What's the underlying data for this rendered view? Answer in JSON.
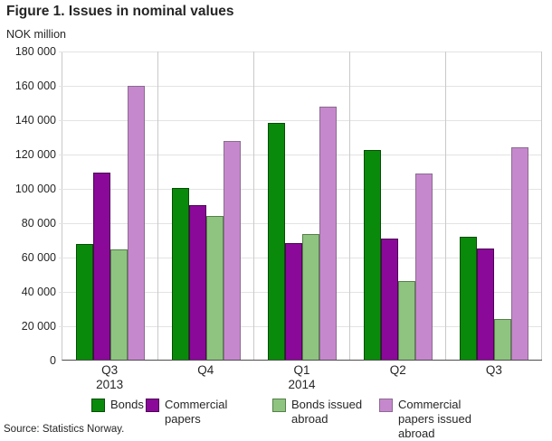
{
  "title": "Figure 1. Issues in nominal values",
  "source": "Source: Statistics Norway.",
  "chart_data": {
    "type": "bar",
    "title": "Figure 1. Issues in nominal values",
    "xlabel": "",
    "ylabel": "NOK million",
    "ylim": [
      0,
      180000
    ],
    "yticks": [
      0,
      20000,
      40000,
      60000,
      80000,
      100000,
      120000,
      140000,
      160000,
      180000
    ],
    "ytick_labels": [
      "0",
      "20 000",
      "40 000",
      "60 000",
      "80 000",
      "100 000",
      "120 000",
      "140 000",
      "160 000",
      "180 000"
    ],
    "categories": [
      "Q3",
      "Q4",
      "Q1",
      "Q2",
      "Q3"
    ],
    "category_years": [
      "2013",
      "",
      "2014",
      "",
      ""
    ],
    "grid": true,
    "legend_position": "bottom",
    "series": [
      {
        "name": "Bonds",
        "color": "#0a8a0a",
        "border_color": "#054d05",
        "values": [
          67500,
          100500,
          138500,
          122500,
          72000
        ]
      },
      {
        "name": "Commercial papers",
        "color": "#8a0999",
        "border_color": "#4c0553",
        "values": [
          109500,
          90500,
          68000,
          70500,
          65000
        ]
      },
      {
        "name": "Bonds issued abroad",
        "color": "#8ec480",
        "border_color": "#567f49",
        "values": [
          64500,
          84000,
          73500,
          46000,
          23500
        ]
      },
      {
        "name": "Commercial papers issued abroad",
        "color": "#c688cd",
        "border_color": "#8a6b90",
        "values": [
          160000,
          128000,
          148000,
          109000,
          124000
        ]
      }
    ]
  }
}
